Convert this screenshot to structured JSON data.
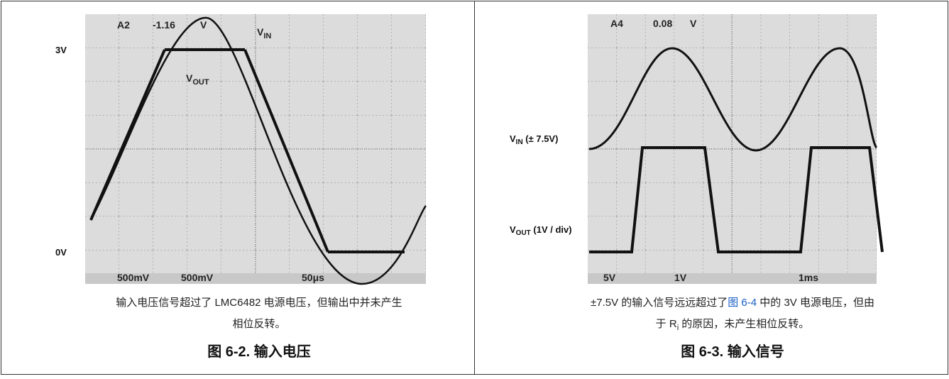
{
  "figures": [
    {
      "scope": {
        "ch": "A2",
        "level": "-1.16",
        "unit": "V",
        "vin_main": "V",
        "vin_sub": "IN",
        "vout_main": "V",
        "vout_sub": "OUT",
        "bottom": [
          "500mV",
          "500mV",
          "50μs"
        ]
      },
      "side_labels": [
        "3V",
        "0V"
      ],
      "caption": [
        "输入电压信号超过了 LMC6482 电源电压，但输出中并未产生",
        "相位反转。"
      ],
      "title": "图 6-2. 输入电压"
    },
    {
      "scope": {
        "ch": "A4",
        "level": "0.08",
        "unit": "V",
        "bottom": [
          "5V",
          "1V",
          "1ms"
        ]
      },
      "side_labels": [
        {
          "main": "V",
          "sub": "IN",
          "rest": " (± 7.5V)"
        },
        {
          "main": "V",
          "sub": "OUT",
          "rest": " (1V / div)"
        }
      ],
      "caption": [
        "±7.5V 的输入信号远远超过了",
        "图 6-4",
        " 中的 3V 电源电压，但由",
        "于 R",
        "i",
        " 的原因，未产生相位反转。"
      ],
      "title": "图 6-3. 输入信号"
    }
  ]
}
